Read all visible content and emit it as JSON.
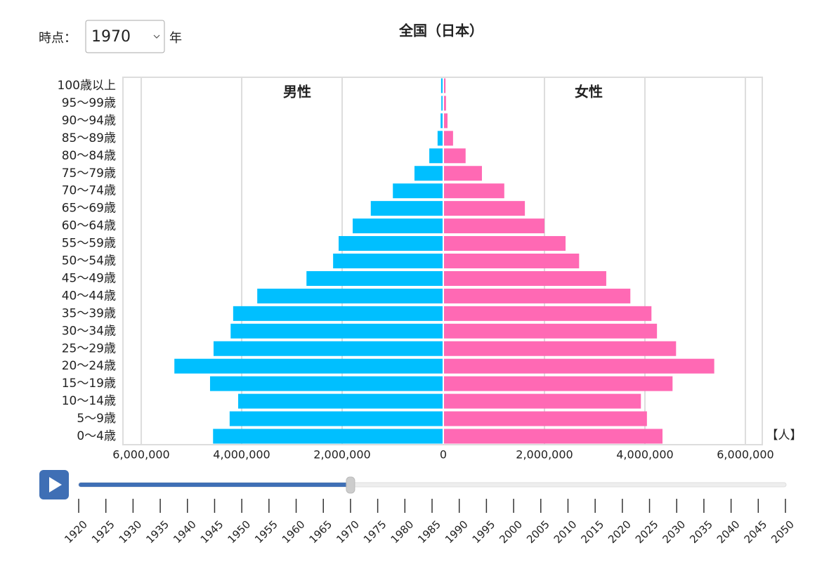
{
  "controls": {
    "label": "時点：",
    "year": 1970,
    "unit": "年"
  },
  "chart_data": {
    "type": "pyramid",
    "title": "全国（日本）",
    "categories": [
      "100歳以上",
      "95〜99歳",
      "90〜94歳",
      "85〜89歳",
      "80〜84歳",
      "75〜79歳",
      "70〜74歳",
      "65〜69歳",
      "60〜64歳",
      "55〜59歳",
      "50〜54歳",
      "45〜49歳",
      "40〜44歳",
      "35〜39歳",
      "30〜34歳",
      "25〜29歳",
      "20〜24歳",
      "15〜19歳",
      "10〜14歳",
      "5〜9歳",
      "0〜4歳"
    ],
    "series": [
      {
        "name": "男性",
        "color": "#00bfff",
        "values": [
          30000,
          25000,
          40000,
          100000,
          265000,
          560000,
          990000,
          1430000,
          1790000,
          2070000,
          2180000,
          2710000,
          3690000,
          4170000,
          4220000,
          4560000,
          5340000,
          4630000,
          4070000,
          4240000,
          4570000
        ]
      },
      {
        "name": "女性",
        "color": "#ff69b4",
        "values": [
          30000,
          40000,
          70000,
          180000,
          430000,
          755000,
          1200000,
          1610000,
          2000000,
          2420000,
          2690000,
          3230000,
          3710000,
          4130000,
          4240000,
          4620000,
          5380000,
          4550000,
          3920000,
          4040000,
          4350000
        ]
      }
    ],
    "xlim": [
      0,
      6350000
    ],
    "xticks": [
      0,
      {
        "value": 2000000,
        "label": "2,000,000"
      },
      {
        "value": 4000000,
        "label": "4,000,000"
      },
      {
        "value": 6000000,
        "label": "6,000,000"
      }
    ],
    "grid": true,
    "unit_label": "【人】"
  },
  "timeline": {
    "years": [
      1920,
      1925,
      1930,
      1935,
      1940,
      1945,
      1950,
      1955,
      1960,
      1965,
      1970,
      1975,
      1980,
      1985,
      1990,
      1995,
      2000,
      2005,
      2010,
      2015,
      2020,
      2025,
      2030,
      2035,
      2040,
      2045,
      2050
    ]
  }
}
